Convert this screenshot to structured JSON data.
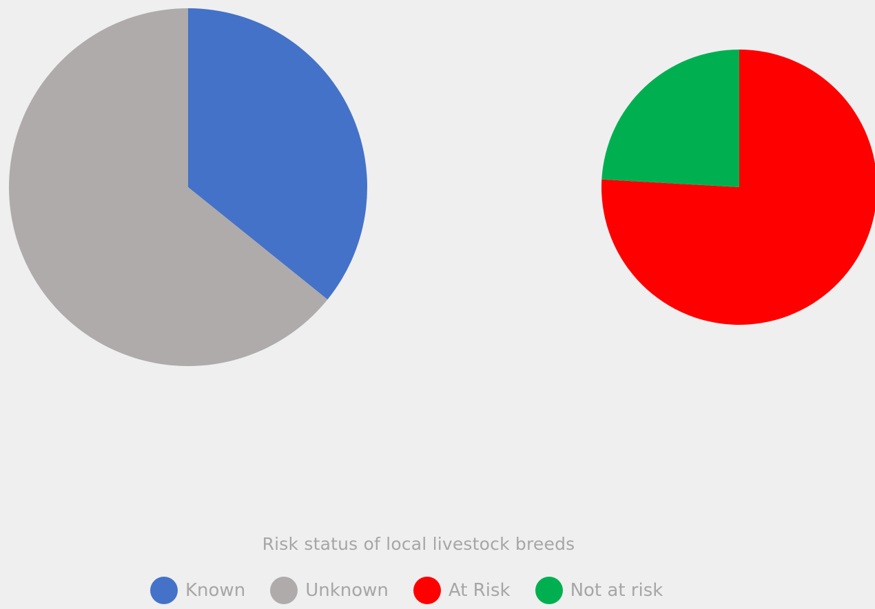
{
  "chart_data": {
    "type": "pie",
    "title": "Risk status of local livestock breeds",
    "legend_position": "bottom",
    "pies": [
      {
        "slices": [
          {
            "label": "Known",
            "value": 35.8,
            "color": "#4472c8"
          },
          {
            "label": "Unknown",
            "value": 64.2,
            "color": "#afabab"
          }
        ]
      },
      {
        "slices": [
          {
            "label": "At Risk",
            "value": 75.9,
            "color": "#ff0000"
          },
          {
            "label": "Not at risk",
            "value": 24.1,
            "color": "#00b050"
          }
        ]
      }
    ],
    "legend": [
      {
        "label": "Known",
        "color": "#4472c8"
      },
      {
        "label": "Unknown",
        "color": "#afabab"
      },
      {
        "label": "At Risk",
        "color": "#ff0000"
      },
      {
        "label": "Not at risk",
        "color": "#00b050"
      }
    ]
  }
}
